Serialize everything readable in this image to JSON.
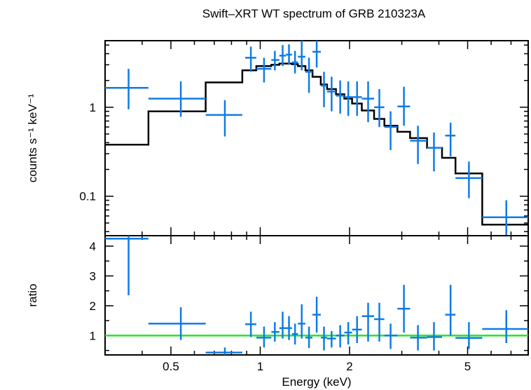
{
  "title": "Swift–XRT WT spectrum of GRB 210323A",
  "colors": {
    "data": "#0f7be6",
    "model": "#000000",
    "unity": "#22e522"
  },
  "chart_data": [
    {
      "type": "scatter",
      "panel": "spectrum",
      "ylabel": "counts s⁻¹ keV⁻¹",
      "xscale": "log",
      "yscale": "log",
      "xlim": [
        0.3,
        8.0
      ],
      "ylim": [
        0.036,
        5.6
      ],
      "x_ticks": [
        0.5,
        1,
        2,
        5
      ],
      "y_ticks": [
        {
          "value": 0.1,
          "label": "0.1"
        },
        {
          "value": 1,
          "label": "1"
        }
      ],
      "series": [
        {
          "kind": "data-with-errors",
          "points": [
            {
              "x": 0.36,
              "xlo": 0.3,
              "xhi": 0.42,
              "y": 1.65,
              "ylo": 0.95,
              "yhi": 2.7
            },
            {
              "x": 0.54,
              "xlo": 0.42,
              "xhi": 0.655,
              "y": 1.25,
              "ylo": 0.78,
              "yhi": 1.95
            },
            {
              "x": 0.76,
              "xlo": 0.655,
              "xhi": 0.87,
              "y": 0.82,
              "ylo": 0.47,
              "yhi": 1.2
            },
            {
              "x": 0.93,
              "xlo": 0.89,
              "xhi": 0.97,
              "y": 3.6,
              "ylo": 2.5,
              "yhi": 4.8
            },
            {
              "x": 1.03,
              "xlo": 0.97,
              "xhi": 1.09,
              "y": 2.7,
              "ylo": 1.9,
              "yhi": 3.6
            },
            {
              "x": 1.12,
              "xlo": 1.09,
              "xhi": 1.16,
              "y": 3.4,
              "ylo": 2.6,
              "yhi": 4.3
            },
            {
              "x": 1.19,
              "xlo": 1.16,
              "xhi": 1.22,
              "y": 3.8,
              "ylo": 2.9,
              "yhi": 5.0
            },
            {
              "x": 1.25,
              "xlo": 1.22,
              "xhi": 1.28,
              "y": 3.9,
              "ylo": 3.0,
              "yhi": 5.1
            },
            {
              "x": 1.31,
              "xlo": 1.28,
              "xhi": 1.34,
              "y": 3.2,
              "ylo": 2.4,
              "yhi": 4.3
            },
            {
              "x": 1.38,
              "xlo": 1.34,
              "xhi": 1.42,
              "y": 3.7,
              "ylo": 2.6,
              "yhi": 5.6
            },
            {
              "x": 1.46,
              "xlo": 1.42,
              "xhi": 1.5,
              "y": 2.5,
              "ylo": 1.45,
              "yhi": 3.6
            },
            {
              "x": 1.55,
              "xlo": 1.5,
              "xhi": 1.6,
              "y": 4.2,
              "ylo": 2.8,
              "yhi": 5.6
            },
            {
              "x": 1.64,
              "xlo": 1.6,
              "xhi": 1.68,
              "y": 1.75,
              "ylo": 1.0,
              "yhi": 2.5
            },
            {
              "x": 1.74,
              "xlo": 1.68,
              "xhi": 1.8,
              "y": 1.5,
              "ylo": 0.9,
              "yhi": 2.2
            },
            {
              "x": 1.86,
              "xlo": 1.8,
              "xhi": 1.92,
              "y": 1.35,
              "ylo": 0.85,
              "yhi": 2.0
            },
            {
              "x": 1.98,
              "xlo": 1.92,
              "xhi": 2.04,
              "y": 1.3,
              "ylo": 0.8,
              "yhi": 1.95
            },
            {
              "x": 2.12,
              "xlo": 2.04,
              "xhi": 2.2,
              "y": 1.3,
              "ylo": 0.8,
              "yhi": 1.95
            },
            {
              "x": 2.31,
              "xlo": 2.2,
              "xhi": 2.42,
              "y": 1.25,
              "ylo": 0.68,
              "yhi": 1.95
            },
            {
              "x": 2.52,
              "xlo": 2.42,
              "xhi": 2.62,
              "y": 1.0,
              "ylo": 0.6,
              "yhi": 1.6
            },
            {
              "x": 2.75,
              "xlo": 2.62,
              "xhi": 2.9,
              "y": 0.6,
              "ylo": 0.33,
              "yhi": 0.9
            },
            {
              "x": 3.05,
              "xlo": 2.9,
              "xhi": 3.2,
              "y": 1.02,
              "ylo": 0.62,
              "yhi": 1.7
            },
            {
              "x": 3.4,
              "xlo": 3.2,
              "xhi": 3.65,
              "y": 0.42,
              "ylo": 0.23,
              "yhi": 0.62
            },
            {
              "x": 3.85,
              "xlo": 3.65,
              "xhi": 4.1,
              "y": 0.35,
              "ylo": 0.19,
              "yhi": 0.52
            },
            {
              "x": 4.38,
              "xlo": 4.2,
              "xhi": 4.55,
              "y": 0.48,
              "ylo": 0.28,
              "yhi": 0.67
            },
            {
              "x": 5.05,
              "xlo": 4.55,
              "xhi": 5.6,
              "y": 0.16,
              "ylo": 0.095,
              "yhi": 0.245
            },
            {
              "x": 6.75,
              "xlo": 5.6,
              "xhi": 8.0,
              "y": 0.058,
              "ylo": 0.036,
              "yhi": 0.09
            }
          ]
        },
        {
          "kind": "model-step",
          "edges": [
            0.3,
            0.42,
            0.655,
            0.87,
            0.97,
            1.09,
            1.16,
            1.22,
            1.28,
            1.34,
            1.42,
            1.5,
            1.6,
            1.68,
            1.8,
            1.92,
            2.04,
            2.2,
            2.42,
            2.62,
            2.9,
            3.2,
            3.65,
            4.1,
            4.55,
            5.6,
            8.0
          ],
          "values": [
            0.38,
            0.9,
            1.9,
            2.6,
            2.9,
            3.0,
            3.1,
            3.1,
            3.05,
            2.9,
            2.6,
            2.2,
            1.8,
            1.6,
            1.4,
            1.25,
            1.1,
            0.92,
            0.74,
            0.62,
            0.53,
            0.45,
            0.35,
            0.27,
            0.18,
            0.048
          ]
        }
      ]
    },
    {
      "type": "scatter",
      "panel": "ratio",
      "xlabel": "Energy (keV)",
      "ylabel": "ratio",
      "xscale": "log",
      "xlim": [
        0.3,
        8.0
      ],
      "ylim": [
        0.35,
        4.35
      ],
      "x_ticks": [
        0.5,
        1,
        2,
        5
      ],
      "y_ticks": [
        {
          "value": 1,
          "label": "1"
        },
        {
          "value": 2,
          "label": "2"
        },
        {
          "value": 3,
          "label": "3"
        },
        {
          "value": 4,
          "label": "4"
        }
      ],
      "reference_line": 1,
      "series": [
        {
          "kind": "data-with-errors",
          "points": [
            {
              "x": 0.36,
              "xlo": 0.3,
              "xhi": 0.42,
              "y": 4.25,
              "ylo": 2.35,
              "yhi": 4.35
            },
            {
              "x": 0.54,
              "xlo": 0.42,
              "xhi": 0.655,
              "y": 1.4,
              "ylo": 0.85,
              "yhi": 1.95
            },
            {
              "x": 0.76,
              "xlo": 0.655,
              "xhi": 0.87,
              "y": 0.43,
              "ylo": 0.35,
              "yhi": 0.6
            },
            {
              "x": 0.93,
              "xlo": 0.89,
              "xhi": 0.97,
              "y": 1.38,
              "ylo": 0.95,
              "yhi": 1.8
            },
            {
              "x": 1.03,
              "xlo": 0.97,
              "xhi": 1.09,
              "y": 0.93,
              "ylo": 0.6,
              "yhi": 1.3
            },
            {
              "x": 1.12,
              "xlo": 1.09,
              "xhi": 1.16,
              "y": 1.12,
              "ylo": 0.8,
              "yhi": 1.45
            },
            {
              "x": 1.19,
              "xlo": 1.16,
              "xhi": 1.22,
              "y": 1.25,
              "ylo": 0.9,
              "yhi": 1.8
            },
            {
              "x": 1.25,
              "xlo": 1.22,
              "xhi": 1.28,
              "y": 1.25,
              "ylo": 0.85,
              "yhi": 1.65
            },
            {
              "x": 1.31,
              "xlo": 1.28,
              "xhi": 1.34,
              "y": 1.05,
              "ylo": 0.7,
              "yhi": 1.4
            },
            {
              "x": 1.38,
              "xlo": 1.34,
              "xhi": 1.42,
              "y": 1.4,
              "ylo": 0.9,
              "yhi": 2.05
            },
            {
              "x": 1.46,
              "xlo": 1.42,
              "xhi": 1.5,
              "y": 0.93,
              "ylo": 0.58,
              "yhi": 1.3
            },
            {
              "x": 1.55,
              "xlo": 1.5,
              "xhi": 1.6,
              "y": 1.7,
              "ylo": 1.1,
              "yhi": 2.3
            },
            {
              "x": 1.64,
              "xlo": 1.6,
              "xhi": 1.68,
              "y": 0.93,
              "ylo": 0.5,
              "yhi": 1.3
            },
            {
              "x": 1.74,
              "xlo": 1.68,
              "xhi": 1.8,
              "y": 0.9,
              "ylo": 0.6,
              "yhi": 1.15
            },
            {
              "x": 1.86,
              "xlo": 1.8,
              "xhi": 1.92,
              "y": 1.0,
              "ylo": 0.6,
              "yhi": 1.35
            },
            {
              "x": 1.98,
              "xlo": 1.92,
              "xhi": 2.04,
              "y": 1.1,
              "ylo": 0.7,
              "yhi": 1.45
            },
            {
              "x": 2.12,
              "xlo": 2.04,
              "xhi": 2.2,
              "y": 1.2,
              "ylo": 0.75,
              "yhi": 1.65
            },
            {
              "x": 2.31,
              "xlo": 2.2,
              "xhi": 2.42,
              "y": 1.65,
              "ylo": 0.8,
              "yhi": 2.1
            },
            {
              "x": 2.52,
              "xlo": 2.42,
              "xhi": 2.62,
              "y": 1.55,
              "ylo": 0.8,
              "yhi": 2.1
            },
            {
              "x": 2.75,
              "xlo": 2.62,
              "xhi": 2.9,
              "y": 1.0,
              "ylo": 0.55,
              "yhi": 1.4
            },
            {
              "x": 3.05,
              "xlo": 2.9,
              "xhi": 3.2,
              "y": 1.9,
              "ylo": 1.1,
              "yhi": 2.7
            },
            {
              "x": 3.4,
              "xlo": 3.2,
              "xhi": 3.65,
              "y": 0.93,
              "ylo": 0.5,
              "yhi": 1.35
            },
            {
              "x": 3.85,
              "xlo": 3.65,
              "xhi": 4.1,
              "y": 0.95,
              "ylo": 0.5,
              "yhi": 1.45
            },
            {
              "x": 4.38,
              "xlo": 4.2,
              "xhi": 4.55,
              "y": 1.7,
              "ylo": 1.0,
              "yhi": 2.7
            },
            {
              "x": 5.05,
              "xlo": 4.55,
              "xhi": 5.6,
              "y": 0.92,
              "ylo": 0.55,
              "yhi": 1.45
            },
            {
              "x": 6.75,
              "xlo": 5.6,
              "xhi": 8.0,
              "y": 1.22,
              "ylo": 0.75,
              "yhi": 1.85
            }
          ]
        }
      ]
    }
  ]
}
